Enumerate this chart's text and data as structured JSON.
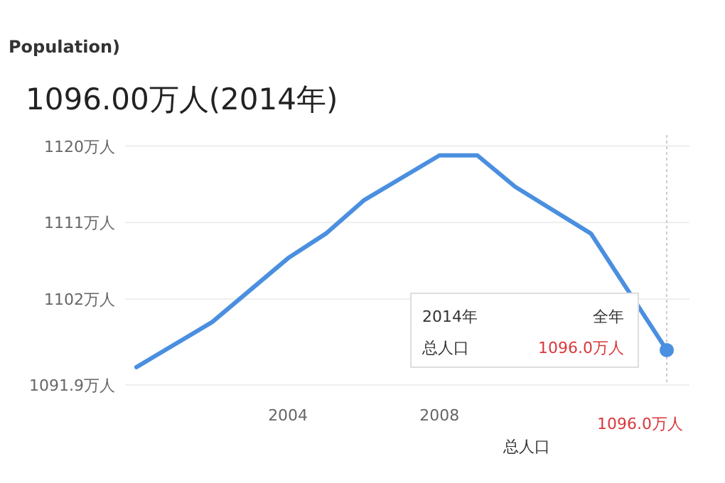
{
  "chart_data": {
    "type": "line",
    "title": "1096.00万人(2014年)",
    "subtitle": "Population)",
    "x": [
      2000,
      2002,
      2004,
      2005,
      2006,
      2008,
      2009,
      2010,
      2012,
      2014
    ],
    "series": [
      {
        "color": "#4a8fe0",
        "values": [
          1094.0,
          1099.3,
          1106.8,
          1109.7,
          1113.6,
          1118.9,
          1118.9,
          1115.2,
          1109.7,
          1096.0
        ]
      }
    ],
    "xlim": [
      1999.7,
      2014.6
    ],
    "xticks": [
      2004,
      2008
    ],
    "ylim": [
      1091.9,
      1121.3
    ],
    "yticks": [
      {
        "value": 1091.9,
        "label": "1091.9万人"
      },
      {
        "value": 1102,
        "label": "1102万人"
      },
      {
        "value": 1111,
        "label": "1111万人"
      },
      {
        "value": 1120,
        "label": "1120万人"
      }
    ],
    "grid": "y",
    "marker": "none",
    "line_style": "solid",
    "ref_lines": [
      {
        "axis": "x",
        "value": 2014,
        "color": "#cccccc",
        "line_style": "dotted"
      }
    ],
    "annotations": [
      {
        "text": "1096.0万人",
        "x": 2014,
        "y": 1096.0
      },
      "2014年",
      "全年",
      "总人口",
      "1096.0万人",
      "总人口"
    ]
  }
}
